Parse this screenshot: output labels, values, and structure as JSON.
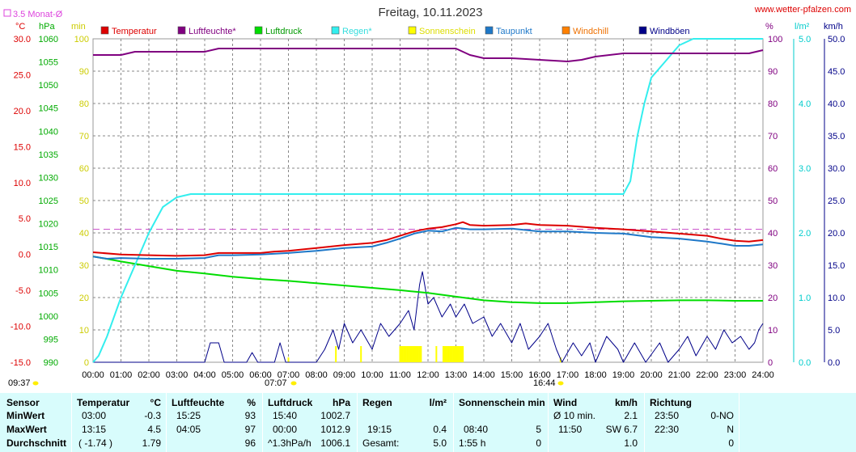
{
  "header": {
    "title": "Freitag, 10.11.2023",
    "site": "www.wetter-pfalzen.com",
    "monthly_avg": "3.5 Monat-Ø",
    "start_time": "09:37",
    "sunrise": "07:07",
    "sunset": "16:44"
  },
  "colors": {
    "temperature": "#dd0000",
    "humidity": "#800080",
    "pressure": "#00dd00",
    "rain": "#33eeee",
    "sunshine": "#ffff00",
    "dewpoint": "#1e78c8",
    "windchill": "#ff8000",
    "gust": "#000088",
    "panel_bg": "#d8fcfc"
  },
  "chart_data": {
    "type": "line",
    "x_ticks": [
      "00:00",
      "01:00",
      "02:00",
      "03:00",
      "04:00",
      "05:00",
      "06:00",
      "07:00",
      "08:00",
      "09:00",
      "10:00",
      "11:00",
      "12:00",
      "13:00",
      "14:00",
      "15:00",
      "16:00",
      "17:00",
      "18:00",
      "19:00",
      "20:00",
      "21:00",
      "22:00",
      "23:00",
      "24:00"
    ],
    "xlim": [
      0,
      24
    ],
    "axes": {
      "temp": {
        "unit": "°C",
        "range": [
          -15,
          30
        ],
        "ticks": [
          "30.0",
          "25.0",
          "20.0",
          "15.0",
          "10.0",
          "5.0",
          "0.0",
          "-5.0",
          "-10.0",
          "-15.0"
        ]
      },
      "pressure": {
        "unit": "hPa",
        "range": [
          990,
          1060
        ],
        "ticks": [
          "1060",
          "1055",
          "1050",
          "1045",
          "1040",
          "1035",
          "1030",
          "1025",
          "1020",
          "1015",
          "1010",
          "1005",
          "1000",
          "995",
          "990"
        ]
      },
      "minutes": {
        "unit": "min",
        "range": [
          0,
          100
        ],
        "ticks": [
          "100",
          "90",
          "80",
          "70",
          "60",
          "50",
          "40",
          "30",
          "20",
          "10",
          "0"
        ]
      },
      "humidity": {
        "unit": "%",
        "range": [
          0,
          100
        ],
        "ticks": [
          "100",
          "90",
          "80",
          "70",
          "60",
          "50",
          "40",
          "30",
          "20",
          "10",
          "0"
        ]
      },
      "rain": {
        "unit": "l/m²",
        "range": [
          0,
          5
        ],
        "ticks": [
          "5.0",
          "4.0",
          "3.0",
          "2.0",
          "1.0",
          "0.0"
        ]
      },
      "wind": {
        "unit": "km/h",
        "range": [
          0,
          50
        ],
        "ticks": [
          "50.0",
          "45.0",
          "40.0",
          "35.0",
          "30.0",
          "25.0",
          "20.0",
          "15.0",
          "10.0",
          "5.0",
          "0.0"
        ]
      }
    },
    "legend": [
      "Temperatur",
      "Luftfeuchte*",
      "Luftdruck",
      "Regen*",
      "Sonnenschein",
      "Taupunkt",
      "Windchill",
      "Windböen"
    ],
    "monthly_avg_temp": 3.5,
    "series": [
      {
        "name": "Temperatur",
        "axis": "temp",
        "points": [
          [
            0,
            0.3
          ],
          [
            1,
            0.0
          ],
          [
            2,
            -0.1
          ],
          [
            3,
            -0.2
          ],
          [
            4,
            -0.1
          ],
          [
            4.5,
            0.2
          ],
          [
            5,
            0.2
          ],
          [
            6,
            0.2
          ],
          [
            6.5,
            0.4
          ],
          [
            7,
            0.5
          ],
          [
            8,
            0.9
          ],
          [
            9,
            1.3
          ],
          [
            10,
            1.6
          ],
          [
            10.5,
            2.0
          ],
          [
            11,
            2.6
          ],
          [
            11.5,
            3.2
          ],
          [
            12,
            3.6
          ],
          [
            12.5,
            3.8
          ],
          [
            13,
            4.2
          ],
          [
            13.25,
            4.5
          ],
          [
            13.5,
            4.1
          ],
          [
            14,
            4.0
          ],
          [
            15,
            4.1
          ],
          [
            15.5,
            4.3
          ],
          [
            16,
            4.1
          ],
          [
            17,
            4.0
          ],
          [
            18,
            3.7
          ],
          [
            19,
            3.5
          ],
          [
            20,
            3.2
          ],
          [
            21,
            2.9
          ],
          [
            22,
            2.6
          ],
          [
            22.5,
            2.2
          ],
          [
            23,
            1.9
          ],
          [
            23.5,
            1.8
          ],
          [
            24,
            2.0
          ]
        ]
      },
      {
        "name": "Taupunkt",
        "axis": "temp",
        "points": [
          [
            0,
            -0.3
          ],
          [
            0.5,
            -0.6
          ],
          [
            1,
            -0.5
          ],
          [
            2,
            -0.6
          ],
          [
            3,
            -0.6
          ],
          [
            4,
            -0.5
          ],
          [
            4.5,
            -0.1
          ],
          [
            5,
            -0.1
          ],
          [
            6,
            0.0
          ],
          [
            7,
            0.2
          ],
          [
            8,
            0.5
          ],
          [
            9,
            0.9
          ],
          [
            10,
            1.1
          ],
          [
            10.5,
            1.6
          ],
          [
            11,
            2.2
          ],
          [
            11.5,
            2.9
          ],
          [
            12,
            3.3
          ],
          [
            12.5,
            3.2
          ],
          [
            13,
            3.7
          ],
          [
            13.5,
            3.5
          ],
          [
            14,
            3.5
          ],
          [
            15,
            3.6
          ],
          [
            16,
            3.2
          ],
          [
            17,
            3.2
          ],
          [
            18,
            3.0
          ],
          [
            19,
            2.9
          ],
          [
            20,
            2.4
          ],
          [
            21,
            2.2
          ],
          [
            22,
            1.8
          ],
          [
            22.5,
            1.5
          ],
          [
            23,
            1.2
          ],
          [
            23.5,
            1.2
          ],
          [
            24,
            1.4
          ]
        ]
      },
      {
        "name": "Luftfeuchte*",
        "axis": "humidity",
        "points": [
          [
            0,
            95
          ],
          [
            1,
            95
          ],
          [
            1.5,
            96
          ],
          [
            3,
            96
          ],
          [
            4,
            96
          ],
          [
            4.5,
            97
          ],
          [
            6,
            97
          ],
          [
            8,
            97
          ],
          [
            10,
            97
          ],
          [
            12,
            97
          ],
          [
            13,
            97
          ],
          [
            13.5,
            95
          ],
          [
            14,
            94
          ],
          [
            14.5,
            94
          ],
          [
            15,
            94
          ],
          [
            16,
            93.5
          ],
          [
            17,
            93
          ],
          [
            17.5,
            93.5
          ],
          [
            18,
            94.5
          ],
          [
            19,
            95.5
          ],
          [
            20,
            95.5
          ],
          [
            21,
            95.5
          ],
          [
            22,
            95.5
          ],
          [
            23,
            95.5
          ],
          [
            23.5,
            95.5
          ],
          [
            24,
            96.5
          ]
        ]
      },
      {
        "name": "Luftdruck",
        "axis": "pressure",
        "points": [
          [
            0,
            1012.9
          ],
          [
            1,
            1011.8
          ],
          [
            2,
            1010.8
          ],
          [
            3,
            1009.8
          ],
          [
            4,
            1009.2
          ],
          [
            5,
            1008.5
          ],
          [
            6,
            1008.0
          ],
          [
            7,
            1007.6
          ],
          [
            8,
            1007.1
          ],
          [
            9,
            1006.6
          ],
          [
            10,
            1006.1
          ],
          [
            11,
            1005.6
          ],
          [
            12,
            1005.0
          ],
          [
            13,
            1004.2
          ],
          [
            14,
            1003.4
          ],
          [
            15,
            1003.0
          ],
          [
            16,
            1002.8
          ],
          [
            17,
            1002.8
          ],
          [
            18,
            1003.0
          ],
          [
            19,
            1003.2
          ],
          [
            20,
            1003.3
          ],
          [
            21,
            1003.4
          ],
          [
            22,
            1003.4
          ],
          [
            23,
            1003.3
          ],
          [
            24,
            1003.3
          ]
        ]
      },
      {
        "name": "Regen*",
        "axis": "rain",
        "points": [
          [
            0,
            0
          ],
          [
            0.2,
            0.1
          ],
          [
            0.5,
            0.4
          ],
          [
            1,
            1.0
          ],
          [
            1.5,
            1.5
          ],
          [
            2,
            2.0
          ],
          [
            2.5,
            2.4
          ],
          [
            3,
            2.55
          ],
          [
            3.5,
            2.6
          ],
          [
            4,
            2.6
          ],
          [
            6,
            2.6
          ],
          [
            10,
            2.6
          ],
          [
            14,
            2.6
          ],
          [
            18,
            2.6
          ],
          [
            19,
            2.6
          ],
          [
            19.25,
            2.8
          ],
          [
            19.5,
            3.5
          ],
          [
            19.75,
            4.0
          ],
          [
            20,
            4.4
          ],
          [
            20.5,
            4.65
          ],
          [
            21,
            4.9
          ],
          [
            21.5,
            5.0
          ],
          [
            24,
            5.0
          ]
        ]
      },
      {
        "name": "Windböen",
        "axis": "wind",
        "points": [
          [
            0,
            0
          ],
          [
            4,
            0
          ],
          [
            4.2,
            3
          ],
          [
            4.5,
            3
          ],
          [
            4.7,
            0
          ],
          [
            5.5,
            0
          ],
          [
            5.7,
            1.5
          ],
          [
            5.9,
            0
          ],
          [
            6.5,
            0
          ],
          [
            6.7,
            3
          ],
          [
            6.9,
            0
          ],
          [
            8,
            0
          ],
          [
            8.3,
            2
          ],
          [
            8.6,
            5
          ],
          [
            8.8,
            2
          ],
          [
            9,
            6
          ],
          [
            9.3,
            3
          ],
          [
            9.6,
            5
          ],
          [
            10,
            2
          ],
          [
            10.3,
            6
          ],
          [
            10.6,
            4
          ],
          [
            11,
            6
          ],
          [
            11.3,
            8
          ],
          [
            11.5,
            5
          ],
          [
            11.7,
            12
          ],
          [
            11.8,
            14
          ],
          [
            12,
            9
          ],
          [
            12.2,
            10
          ],
          [
            12.5,
            7
          ],
          [
            12.8,
            9
          ],
          [
            13,
            7
          ],
          [
            13.3,
            9
          ],
          [
            13.6,
            6
          ],
          [
            14,
            7
          ],
          [
            14.3,
            4
          ],
          [
            14.6,
            6
          ],
          [
            15,
            3
          ],
          [
            15.3,
            6
          ],
          [
            15.6,
            2
          ],
          [
            16,
            4
          ],
          [
            16.3,
            6
          ],
          [
            16.6,
            2
          ],
          [
            16.8,
            0
          ],
          [
            17.2,
            3
          ],
          [
            17.5,
            1
          ],
          [
            17.8,
            3
          ],
          [
            18,
            0
          ],
          [
            18.4,
            4
          ],
          [
            18.8,
            2
          ],
          [
            19,
            0
          ],
          [
            19.4,
            3
          ],
          [
            19.8,
            0
          ],
          [
            20.3,
            3
          ],
          [
            20.6,
            0
          ],
          [
            21,
            2
          ],
          [
            21.3,
            4
          ],
          [
            21.6,
            1
          ],
          [
            22,
            4
          ],
          [
            22.3,
            2
          ],
          [
            22.6,
            5
          ],
          [
            22.9,
            3
          ],
          [
            23.2,
            4
          ],
          [
            23.5,
            2
          ],
          [
            23.7,
            3
          ],
          [
            23.85,
            5
          ],
          [
            24,
            6
          ]
        ]
      }
    ],
    "sunshine_bars": [
      [
        7.0,
        1.5
      ],
      [
        8.7,
        5
      ],
      [
        9.6,
        5
      ],
      [
        11.0,
        5
      ],
      [
        11.05,
        5
      ],
      [
        11.1,
        5
      ],
      [
        11.15,
        5
      ],
      [
        11.2,
        5
      ],
      [
        11.25,
        5
      ],
      [
        11.3,
        5
      ],
      [
        11.35,
        5
      ],
      [
        11.4,
        5
      ],
      [
        11.45,
        5
      ],
      [
        11.5,
        5
      ],
      [
        11.55,
        5
      ],
      [
        11.6,
        5
      ],
      [
        11.65,
        5
      ],
      [
        11.7,
        5
      ],
      [
        11.75,
        5
      ],
      [
        12.3,
        5
      ],
      [
        12.55,
        5
      ],
      [
        12.6,
        5
      ],
      [
        12.65,
        5
      ],
      [
        12.7,
        5
      ],
      [
        12.75,
        5
      ],
      [
        12.8,
        5
      ],
      [
        12.85,
        5
      ],
      [
        12.9,
        5
      ],
      [
        12.95,
        5
      ],
      [
        13.0,
        5
      ],
      [
        13.05,
        5
      ],
      [
        13.1,
        5
      ],
      [
        13.15,
        5
      ],
      [
        13.2,
        5
      ],
      [
        13.25,
        5
      ],
      [
        16.75,
        1.5
      ]
    ]
  },
  "stats": {
    "labels": {
      "sensor": "Sensor",
      "min": "MinWert",
      "max": "MaxWert",
      "avg": "Durchschnitt"
    },
    "temp": {
      "label": "Temperatur",
      "unit": "°C",
      "min_time": "03:00",
      "min_val": "-0.3",
      "max_time": "13:15",
      "max_val": "4.5",
      "avg_extra": "( -1.74 )",
      "avg_val": "1.79"
    },
    "hum": {
      "label": "Luftfeuchte",
      "unit": "%",
      "min_time": "15:25",
      "min_val": "93",
      "max_time": "04:05",
      "max_val": "97",
      "avg_val": "96"
    },
    "press": {
      "label": "Luftdruck",
      "unit": "hPa",
      "min_time": "15:40",
      "min_val": "1002.7",
      "max_time": "00:00",
      "max_val": "1012.9",
      "avg_extra": "^1.3hPa/h",
      "avg_val": "1006.1"
    },
    "rain": {
      "label": "Regen",
      "unit": "l/m²",
      "max_time": "19:15",
      "max_val": "0.4",
      "avg_extra": "Gesamt:",
      "avg_val": "5.0"
    },
    "sun": {
      "label": "Sonnenschein min",
      "max_time": "08:40",
      "max_val": "5",
      "avg_extra": "1:55 h",
      "avg_val": "0"
    },
    "wind": {
      "label": "Wind",
      "unit": "km/h",
      "min_time": "Ø 10 min.",
      "min_val": "2.1",
      "max_time": "11:50",
      "max_val": "SW 6.7",
      "avg_val": "1.0"
    },
    "dir": {
      "label": "Richtung",
      "min_time": "23:50",
      "min_val": "0-NO",
      "max_time": "22:30",
      "max_val": "N",
      "avg_val": "0"
    }
  }
}
